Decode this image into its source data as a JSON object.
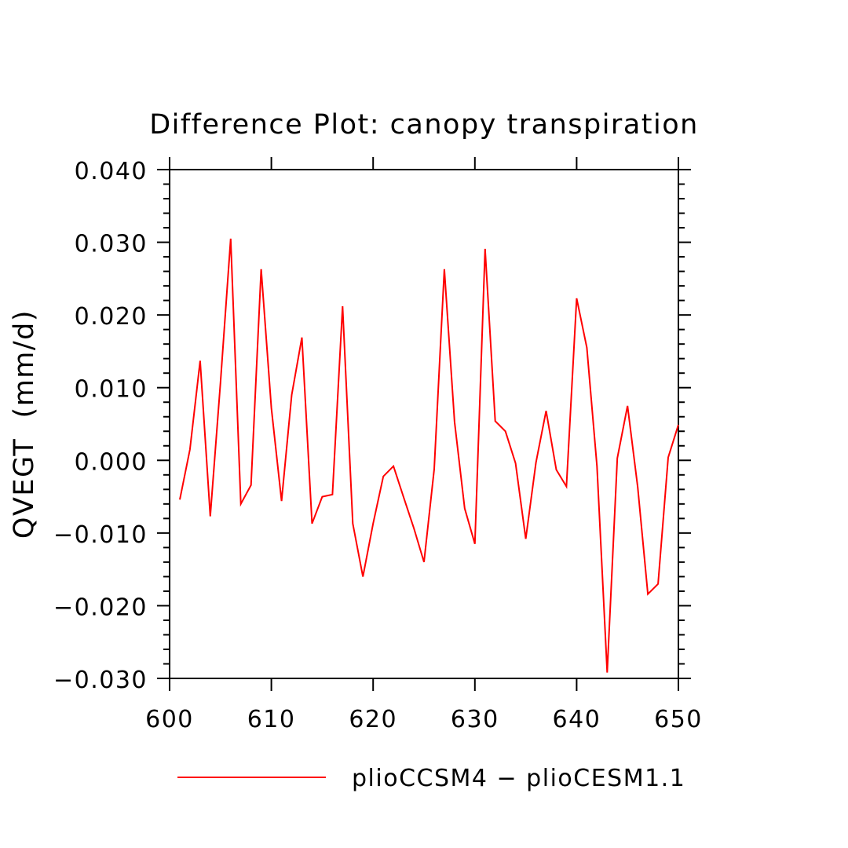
{
  "chart_data": {
    "type": "line",
    "title": "Difference Plot: canopy transpiration",
    "xlabel": "",
    "ylabel": "QVEGT  (mm/d)",
    "xlim": [
      600,
      650
    ],
    "ylim": [
      -0.03,
      0.04
    ],
    "x_ticks": [
      600,
      610,
      620,
      630,
      640,
      650
    ],
    "x_tick_labels": [
      "600",
      "610",
      "620",
      "630",
      "640",
      "650"
    ],
    "y_ticks": [
      -0.03,
      -0.02,
      -0.01,
      0.0,
      0.01,
      0.02,
      0.03,
      0.04
    ],
    "y_tick_labels": [
      "−0.030",
      "−0.020",
      "−0.010",
      "0.000",
      "0.010",
      "0.020",
      "0.030",
      "0.040"
    ],
    "grid": false,
    "legend_position": "bottom",
    "x": [
      601,
      602,
      603,
      604,
      605,
      606,
      607,
      608,
      609,
      610,
      611,
      612,
      613,
      614,
      615,
      616,
      617,
      618,
      619,
      620,
      621,
      622,
      623,
      624,
      625,
      626,
      627,
      628,
      629,
      630,
      631,
      632,
      633,
      634,
      635,
      636,
      637,
      638,
      639,
      640,
      641,
      642,
      643,
      644,
      645,
      646,
      647,
      648,
      649,
      650
    ],
    "series": [
      {
        "name": "plioCCSM4 − plioCESM1.1",
        "color": "#ff0000",
        "values": [
          -0.0054,
          0.0015,
          0.0137,
          -0.0077,
          0.0107,
          0.0305,
          -0.006,
          -0.0034,
          0.0263,
          0.0072,
          -0.0056,
          0.009,
          0.0169,
          -0.0087,
          -0.005,
          -0.0047,
          0.0212,
          -0.0087,
          -0.016,
          -0.0087,
          -0.0022,
          -0.0008,
          -0.0051,
          -0.0093,
          -0.014,
          -0.0012,
          0.0263,
          0.0053,
          -0.0066,
          -0.0115,
          0.0291,
          0.0054,
          0.004,
          -0.0004,
          -0.0108,
          -0.0003,
          0.0068,
          -0.0013,
          -0.0036,
          0.0223,
          0.0155,
          -0.0008,
          -0.0292,
          0.0003,
          0.0075,
          -0.0037,
          -0.0184,
          -0.017,
          0.0004,
          0.0049
        ]
      }
    ]
  }
}
